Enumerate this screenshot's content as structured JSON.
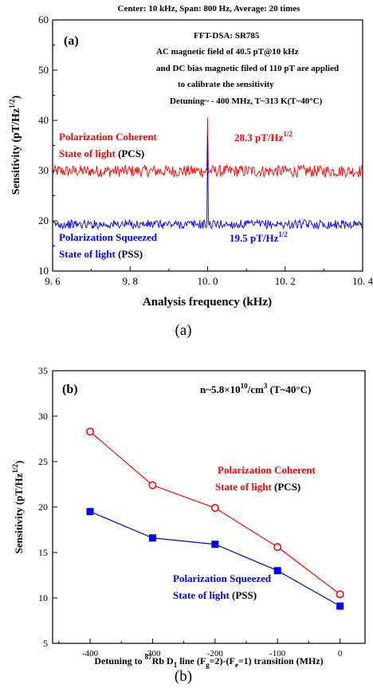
{
  "chart_data": [
    {
      "type": "line",
      "header": "Center: 10 kHz,   Span: 800 Hz,   Average: 20 times",
      "panel_label": "(a)",
      "xlabel": "Analysis frequency (kHz)",
      "ylabel_main": "Sensitivity (pT/Hz",
      "ylabel_sup": "1/2",
      "ylabel_close": ")",
      "xlim": [
        9.6,
        10.4
      ],
      "ylim": [
        10,
        60
      ],
      "xticks": [
        9.6,
        9.8,
        10.0,
        10.2,
        10.4
      ],
      "xtick_labels": [
        "9. 6",
        "9. 8",
        "10. 0",
        "10. 2",
        "10. 4"
      ],
      "yticks": [
        10,
        20,
        30,
        40,
        50,
        60
      ],
      "ytick_labels": [
        "10",
        "20",
        "30",
        "40",
        "50",
        "60"
      ],
      "info_lines": [
        "FFT-DSA: SR785",
        "AC magnetic field of 40.5 pT@10 kHz",
        "and  DC bias magnetic filed of 110 pT are applied",
        "to calibrate the sensitivity",
        "Detuning~ - 400 MHz, T~313 K(T~40°C)"
      ],
      "series": [
        {
          "color": "#ff0000",
          "base": 29.9,
          "noise": 1.2,
          "peak_x": 10.0,
          "peak_y": 40.5,
          "label_line1": "Polarization Coherent",
          "label_line2": "State of light",
          "label_abbr": "(PCS)",
          "value_text": "28.3 pT/Hz",
          "value_sup": "1/2"
        },
        {
          "color": "#0000ff",
          "base": 19.3,
          "noise": 0.9,
          "peak_x": 10.0,
          "peak_y": 37.0,
          "label_line1": "Polarization Squeezed",
          "label_line2": "State of light",
          "label_abbr": "(PSS)",
          "value_text": "19.5 pT/Hz",
          "value_sup": "1/2"
        }
      ],
      "caption": "(a)"
    },
    {
      "type": "line",
      "panel_label": "(b)",
      "annotation_main": "n~5.8×10",
      "annotation_sup1": "10",
      "annotation_mid": "/cm",
      "annotation_sup2": "3",
      "annotation_tail": " (T~40°C)",
      "xlabel_pre": "Detuning to ",
      "xlabel_sup": "87",
      "xlabel_rb": "Rb D",
      "xlabel_sub1": "1",
      "xlabel_mid1": " line (F",
      "xlabel_sub2": "g",
      "xlabel_mid2": "=2)-(F",
      "xlabel_sub3": "e",
      "xlabel_post": "=1) transition (MHz)",
      "ylabel_main": "Sensitivity (pT/Hz",
      "ylabel_sup": "1/2",
      "ylabel_close": ")",
      "xlim": [
        -460,
        40
      ],
      "ylim": [
        5,
        35
      ],
      "xticks": [
        -400,
        -300,
        -200,
        -100,
        0
      ],
      "xtick_labels": [
        "-400",
        "-300",
        "-200",
        "-100",
        "0"
      ],
      "yticks": [
        5,
        10,
        15,
        20,
        25,
        30,
        35
      ],
      "ytick_labels": [
        "5",
        "10",
        "15",
        "20",
        "25",
        "30",
        "35"
      ],
      "x": [
        -400,
        -300,
        -200,
        -100,
        0
      ],
      "series": [
        {
          "color": "#ff0000",
          "marker": "open-circle",
          "values": [
            28.3,
            22.4,
            19.9,
            15.6,
            10.4
          ],
          "label_line1": "Polarization Coherent",
          "label_line2": "State of light",
          "label_abbr": "(PCS)"
        },
        {
          "color": "#0000ff",
          "marker": "filled-square",
          "values": [
            19.5,
            16.6,
            15.9,
            13.0,
            9.1
          ],
          "label_line1": "Polarization Squeezed",
          "label_line2": "State of light",
          "label_abbr": "(PSS)"
        }
      ],
      "caption": "(b)"
    }
  ]
}
